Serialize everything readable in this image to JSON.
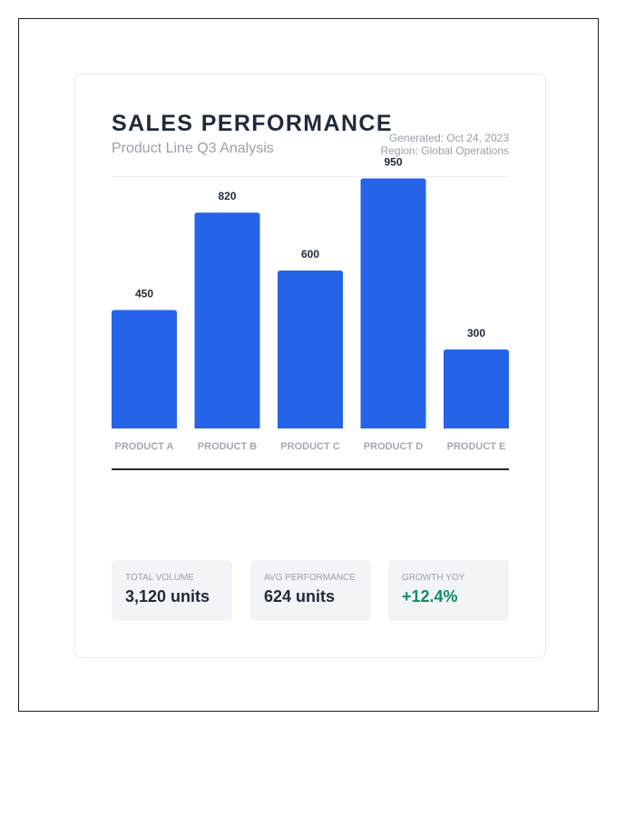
{
  "header": {
    "title": "SALES PERFORMANCE",
    "subtitle": "Product Line Q3 Analysis",
    "generated": "Generated: Oct 24, 2023",
    "region": "Region: Global Operations"
  },
  "chart_data": {
    "type": "bar",
    "categories": [
      "PRODUCT A",
      "PRODUCT B",
      "PRODUCT C",
      "PRODUCT D",
      "PRODUCT E"
    ],
    "values": [
      450,
      820,
      600,
      950,
      300
    ],
    "ylim": [
      0,
      1000
    ],
    "grid": false,
    "data_labels": true,
    "bar_color": "#2563e8"
  },
  "stats": [
    {
      "label": "TOTAL VOLUME",
      "value": "3,120 units",
      "color": "#1f2a3a"
    },
    {
      "label": "AVG PERFORMANCE",
      "value": "624 units",
      "color": "#1f2a3a"
    },
    {
      "label": "GROWTH YOY",
      "value": "+12.4%",
      "color": "#0b8f63"
    }
  ]
}
